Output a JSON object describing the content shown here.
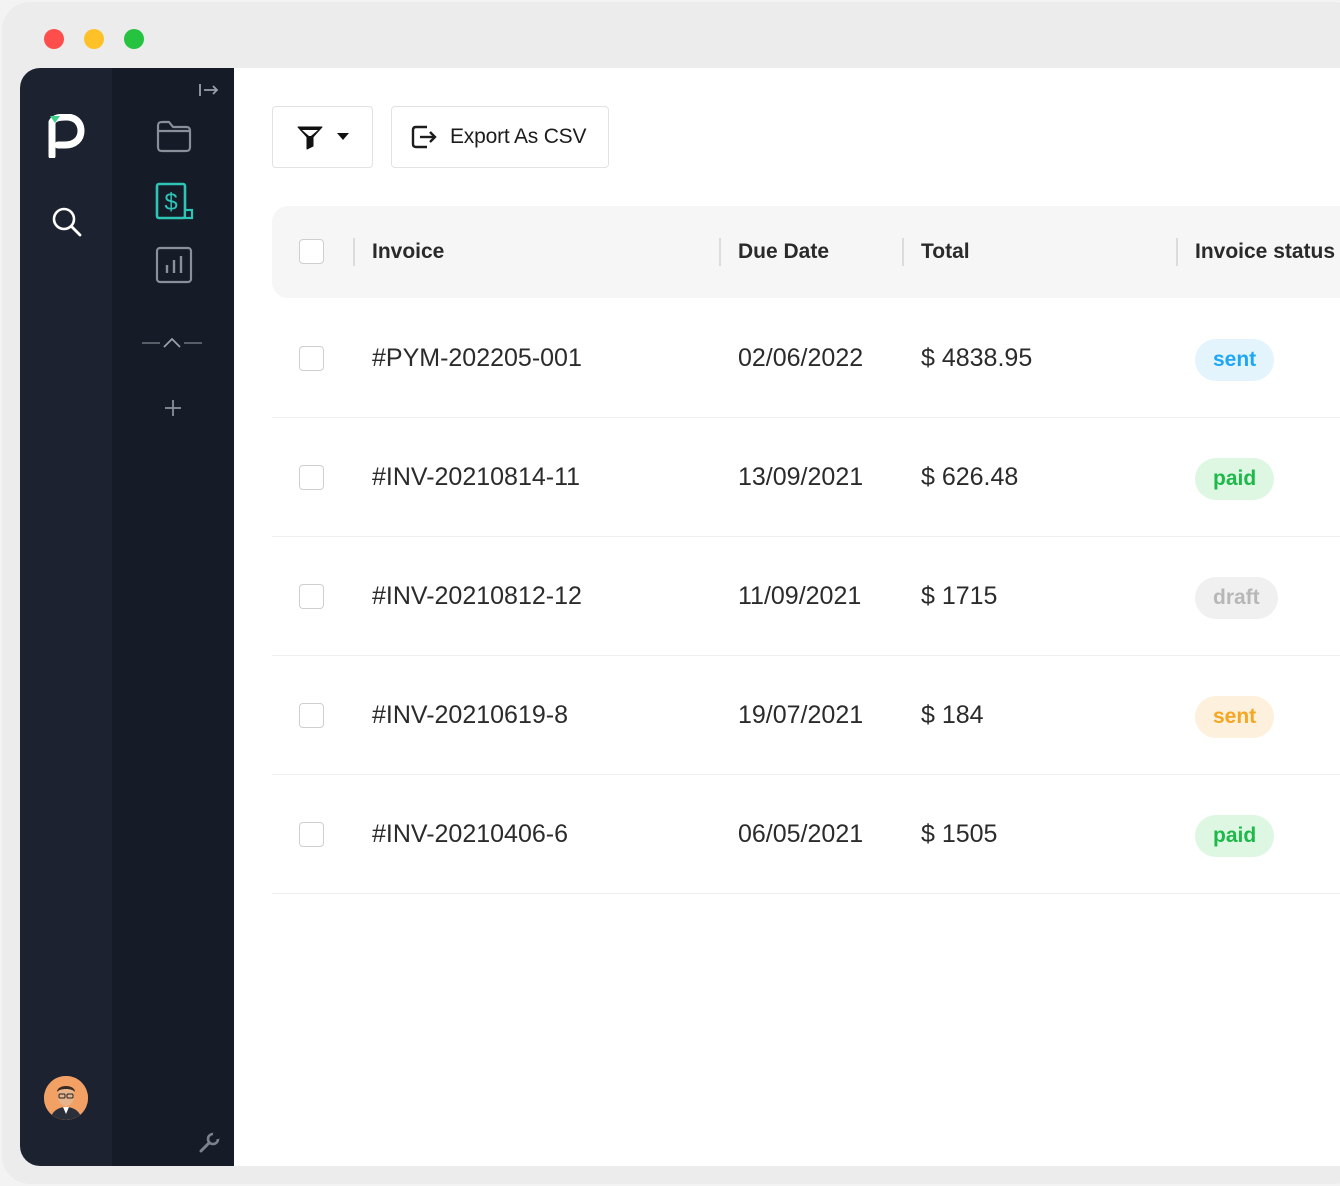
{
  "window": {
    "traffic_lights": {
      "close": "#fd4e4c",
      "minimize": "#fec127",
      "maximize": "#25c33f"
    }
  },
  "sidebar": {
    "logo": "p-logo-icon",
    "rail_icons": [
      "search-icon",
      "avatar",
      "wrench-icon"
    ],
    "panel_icons": [
      "collapse-arrow-icon",
      "folder-icon",
      "invoice-icon",
      "chart-icon",
      "chevron-up-icon",
      "plus-icon"
    ],
    "active_color": "#2ec4b6"
  },
  "toolbar": {
    "filter_icon": "filter-icon",
    "export_label": "Export As CSV"
  },
  "table": {
    "columns": {
      "invoice": "Invoice",
      "due_date": "Due Date",
      "total": "Total",
      "status": "Invoice status"
    },
    "rows": [
      {
        "invoice": "#PYM-202205-001",
        "due_date": "02/06/2022",
        "total": "$ 4838.95",
        "status": "sent",
        "status_color": "#1ea7f5",
        "status_bg": "#e3f4fd"
      },
      {
        "invoice": "#INV-20210814-11",
        "due_date": "13/09/2021",
        "total": "$ 626.48",
        "status": "paid",
        "status_color": "#1fb84a",
        "status_bg": "#def7e3"
      },
      {
        "invoice": "#INV-20210812-12",
        "due_date": "11/09/2021",
        "total": "$ 1715",
        "status": "draft",
        "status_color": "#b7b7b7",
        "status_bg": "#f0f0f0"
      },
      {
        "invoice": "#INV-20210619-8",
        "due_date": "19/07/2021",
        "total": "$ 184",
        "status": "sent",
        "status_color": "#f5a623",
        "status_bg": "#fdf0dc"
      },
      {
        "invoice": "#INV-20210406-6",
        "due_date": "06/05/2021",
        "total": "$ 1505",
        "status": "paid",
        "status_color": "#1fb84a",
        "status_bg": "#def7e3"
      }
    ]
  }
}
